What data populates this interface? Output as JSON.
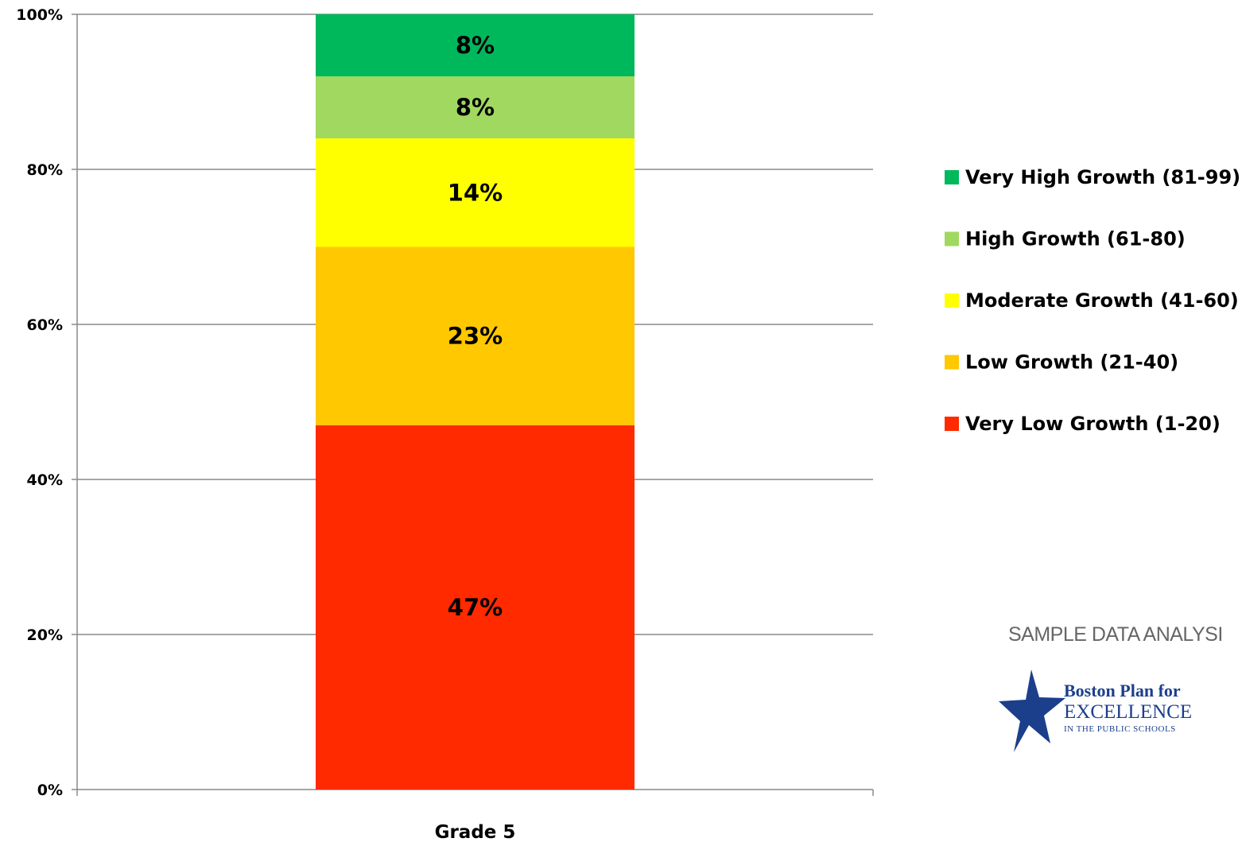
{
  "chart_data": {
    "type": "bar",
    "stacked": true,
    "categories": [
      "Grade 5"
    ],
    "series": [
      {
        "name": "Very Low Growth (1-20)",
        "values": [
          47
        ],
        "color": "#ff2a00"
      },
      {
        "name": "Low Growth (21-40)",
        "values": [
          23
        ],
        "color": "#ffc800"
      },
      {
        "name": "Moderate Growth (41-60)",
        "values": [
          14
        ],
        "color": "#ffff00"
      },
      {
        "name": "High Growth (61-80)",
        "values": [
          8
        ],
        "color": "#a0d860"
      },
      {
        "name": "Very High Growth (81-99)",
        "values": [
          8
        ],
        "color": "#00b85c"
      }
    ],
    "data_labels": [
      "47%",
      "23%",
      "14%",
      "8%",
      "8%"
    ],
    "ylim": [
      0,
      100
    ],
    "yticks": [
      0,
      20,
      40,
      60,
      80,
      100
    ],
    "ytick_labels": [
      "0%",
      "20%",
      "40%",
      "60%",
      "80%",
      "100%"
    ],
    "grid": true,
    "legend_position": "right",
    "xlabel": "",
    "ylabel": ""
  },
  "watermark": {
    "text": "SAMPLE DATA ANALYSI",
    "logo": {
      "line1": "Boston Plan for",
      "line2": "EXCELLENCE",
      "line3": "IN THE PUBLIC SCHOOLS",
      "icon": "star-icon",
      "color": "#1c3f8c"
    }
  }
}
